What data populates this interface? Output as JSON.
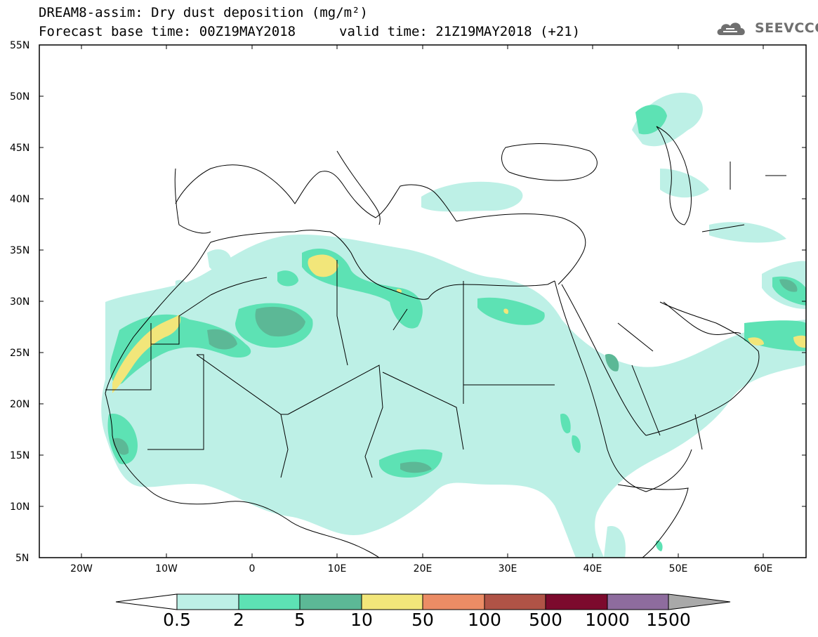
{
  "header": {
    "title": "DREAM8-assim: Dry dust deposition (mg/m²)",
    "base_time": "Forecast base time: 00Z19MAY2018",
    "valid_time": "valid time: 21Z19MAY2018 (+21)",
    "logo_text": "SEEVCCC"
  },
  "axes": {
    "lat_labels": [
      "55N",
      "50N",
      "45N",
      "40N",
      "35N",
      "30N",
      "25N",
      "20N",
      "15N",
      "10N",
      "5N"
    ],
    "lon_labels": [
      "20W",
      "10W",
      "0",
      "10E",
      "20E",
      "30E",
      "40E",
      "50E",
      "60E"
    ]
  },
  "colorbar": {
    "labels": [
      "0.5",
      "2",
      "5",
      "10",
      "50",
      "100",
      "500",
      "1000",
      "1500"
    ],
    "colors": [
      "#ffffff",
      "#bdf0e6",
      "#5de2b4",
      "#5cb896",
      "#f2e67a",
      "#eb8c65",
      "#b05346",
      "#7c0a2d",
      "#8e6c9e",
      "#a9a9a9"
    ]
  },
  "map_palette": {
    "land_fill": "#ffffff",
    "border_color": "#000000",
    "level1": "#bdf0e6",
    "level2": "#5de2b4",
    "level3": "#5cb896",
    "level4": "#f2e67a"
  }
}
